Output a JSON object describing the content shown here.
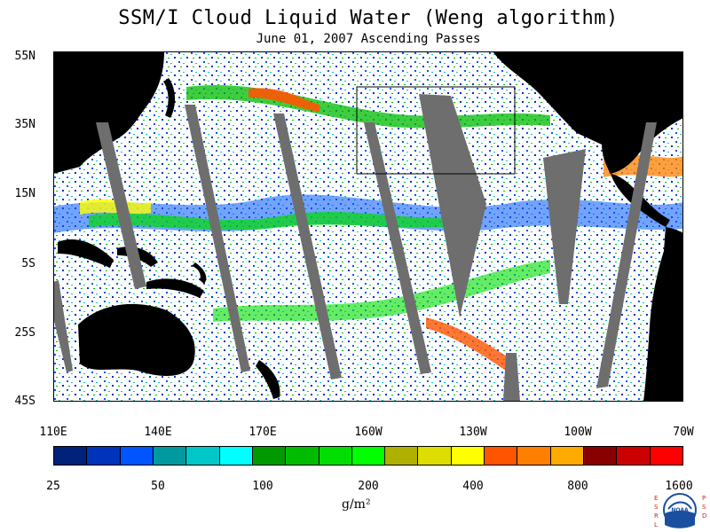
{
  "title": "SSM/I Cloud Liquid Water (Weng algorithm)",
  "subtitle": "June 01, 2007  Ascending Passes",
  "map": {
    "lat_labels": [
      "55N",
      "35N",
      "15N",
      "5S",
      "25S",
      "45S"
    ],
    "lon_labels": [
      "110E",
      "140E",
      "170E",
      "160W",
      "130W",
      "100W",
      "70W"
    ],
    "colors": {
      "land": "#000000",
      "no_data_swath": "#6e6e6e",
      "clear_ocean": "#ffffff",
      "region_box": "#000000"
    }
  },
  "colorbar": {
    "colors": [
      "#00227a",
      "#0033bb",
      "#0055ff",
      "#00999f",
      "#00c8c8",
      "#00ffff",
      "#009900",
      "#00bb00",
      "#00dd00",
      "#00ff00",
      "#b0b000",
      "#dddd00",
      "#ffff00",
      "#ff5500",
      "#ff7f00",
      "#ffaa00",
      "#880000",
      "#cc0000",
      "#ff0000"
    ],
    "tick_labels": [
      "25",
      "50",
      "100",
      "200",
      "400",
      "800",
      "1600"
    ],
    "units": "g/m²"
  },
  "logo": {
    "left_text": "ESRL",
    "right_text": "PSD",
    "center_text": "NOAA"
  }
}
